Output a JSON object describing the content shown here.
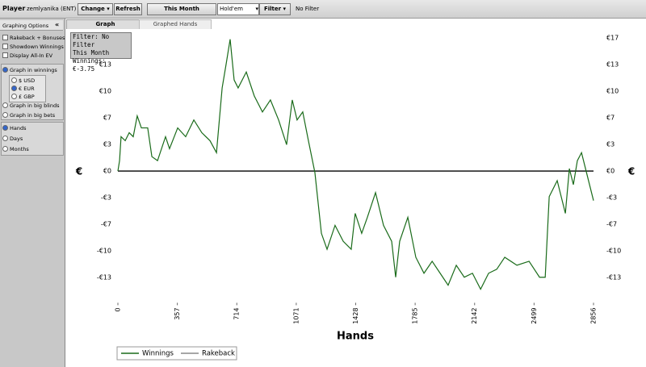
{
  "toolbar": {
    "player_label": "Player",
    "player_name": "zemlyanika (ENT)",
    "change": "Change",
    "refresh": "Refresh",
    "period": "This Month",
    "game": "Hold'em",
    "filter": "Filter",
    "filter_status": "No Filter"
  },
  "tabs": [
    "Graph",
    "Graphed Hands"
  ],
  "sidebar": {
    "title": "Graphing Options",
    "collapse": "«",
    "checkboxes": [
      "Rakeback + Bonuses",
      "Showdown Winnings",
      "Display All-In EV"
    ],
    "graph_in_winnings": "Graph in winnings",
    "currencies": [
      "$ USD",
      "€ EUR",
      "£ GBP"
    ],
    "graph_in_big_blinds": "Graph in big blinds",
    "graph_in_big_bets": "Graph in big bets",
    "x_modes": [
      "Hands",
      "Days",
      "Months"
    ]
  },
  "info_box": [
    "Filter: No Filter",
    "This Month",
    "Winnings: €-3.75"
  ],
  "chart_data": {
    "type": "line",
    "xlabel": "Hands",
    "ylabel": "€",
    "xlim": [
      0,
      2856
    ],
    "xticks": [
      0,
      357,
      714,
      1071,
      1428,
      1785,
      2142,
      2499,
      2856
    ],
    "ylim": [
      -16.5,
      16.67
    ],
    "yticks": [
      {
        "value": 16.67,
        "label": "€17"
      },
      {
        "value": 13.33,
        "label": "€13"
      },
      {
        "value": 10,
        "label": "€10"
      },
      {
        "value": 6.67,
        "label": "€7"
      },
      {
        "value": 3.33,
        "label": "€3"
      },
      {
        "value": 0,
        "label": "€0"
      },
      {
        "value": -3.33,
        "label": "-€3"
      },
      {
        "value": -6.67,
        "label": "-€7"
      },
      {
        "value": -10,
        "label": "-€10"
      },
      {
        "value": -13.33,
        "label": "-€13"
      }
    ],
    "x": [
      0,
      10,
      19,
      44,
      68,
      92,
      116,
      141,
      179,
      204,
      238,
      286,
      310,
      359,
      407,
      456,
      504,
      553,
      592,
      626,
      650,
      674,
      698,
      722,
      771,
      819,
      868,
      916,
      965,
      1013,
      1047,
      1076,
      1110,
      1144,
      1183,
      1222,
      1256,
      1304,
      1353,
      1401,
      1425,
      1464,
      1498,
      1547,
      1595,
      1644,
      1668,
      1692,
      1741,
      1789,
      1838,
      1887,
      1935,
      1983,
      2032,
      2080,
      2129,
      2178,
      2226,
      2275,
      2323,
      2396,
      2469,
      2532,
      2566,
      2590,
      2638,
      2687,
      2711,
      2735,
      2759,
      2784,
      2808,
      2856
    ],
    "series": [
      {
        "name": "Winnings",
        "color": "#1a6b1a",
        "values": [
          0,
          1.3,
          4.3,
          3.8,
          4.8,
          4.3,
          6.9,
          5.4,
          5.4,
          1.8,
          1.3,
          4.3,
          2.8,
          5.4,
          4.3,
          6.4,
          4.8,
          3.8,
          2.3,
          10.4,
          13.4,
          16.5,
          11.4,
          10.4,
          12.4,
          9.4,
          7.4,
          8.9,
          6.4,
          3.3,
          8.9,
          6.4,
          7.4,
          3.8,
          -0.2,
          -7.8,
          -9.8,
          -6.8,
          -8.8,
          -9.8,
          -5.3,
          -7.8,
          -5.8,
          -2.7,
          -6.8,
          -8.8,
          -13.3,
          -8.8,
          -5.8,
          -10.8,
          -12.8,
          -11.3,
          -12.8,
          -14.3,
          -11.8,
          -13.3,
          -12.8,
          -14.8,
          -12.8,
          -12.3,
          -10.8,
          -11.8,
          -11.3,
          -13.3,
          -13.3,
          -3.2,
          -1.2,
          -5.3,
          0.3,
          -1.7,
          1.3,
          2.3,
          0.3,
          -3.7
        ]
      }
    ],
    "legend": [
      {
        "name": "Winnings",
        "color": "#1a6b1a"
      },
      {
        "name": "Rakeback",
        "color": "#888888"
      }
    ]
  }
}
